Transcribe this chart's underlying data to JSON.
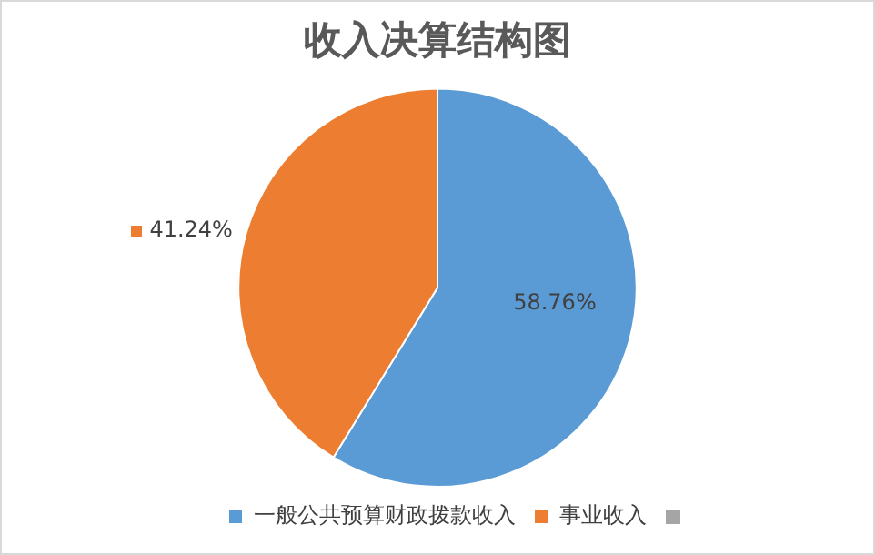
{
  "chart_data": {
    "type": "pie",
    "title": "收入决算结构图",
    "categories": [
      "一般公共预算财政拨款收入",
      "事业收入",
      null
    ],
    "values": [
      58.76,
      41.24,
      0
    ],
    "colors": [
      "#5b9bd5",
      "#ed7d31",
      "#a5a5a5"
    ],
    "value_labels": [
      "58.76%",
      "41.24%",
      null
    ],
    "legend": "bottom"
  }
}
